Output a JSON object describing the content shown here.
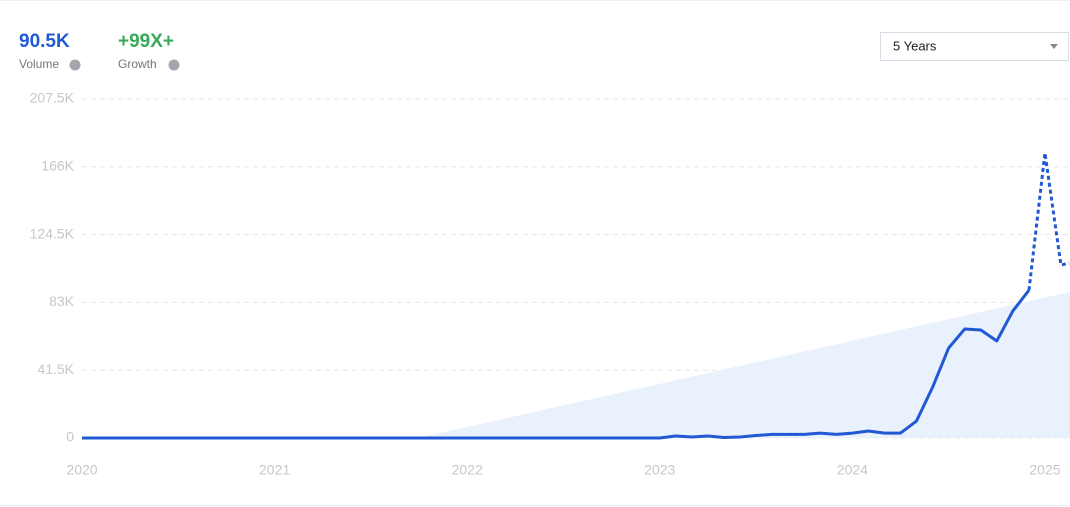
{
  "chart_data": {
    "type": "line",
    "stats": [
      {
        "value": "90.5K",
        "label": "Volume",
        "color": "#1f5ad6"
      },
      {
        "value": "+99X+",
        "label": "Growth",
        "color": "#38a95a"
      }
    ],
    "range_selector": "5 Years",
    "xlim": [
      2020,
      2025.13
    ],
    "xticks": [
      2020,
      2021,
      2022,
      2023,
      2024,
      2025
    ],
    "ylim": [
      0,
      207500
    ],
    "yticks": [
      0,
      {
        "value": 41500,
        "label": "41.5K"
      },
      {
        "value": 83000,
        "label": "83K"
      },
      {
        "value": 124500,
        "label": "124.5K"
      },
      {
        "value": 166000,
        "label": "166K"
      },
      {
        "value": 207500,
        "label": "207.5K"
      }
    ],
    "grid": true,
    "series": [
      {
        "style": "area",
        "color": "#e9f1fc",
        "x": [
          2021.745,
          2025.13
        ],
        "values": [
          0,
          89400
        ]
      },
      {
        "style": "solid",
        "color": "#2159d4",
        "x": [
          2020,
          2021,
          2022,
          2023,
          2023.083,
          2023.167,
          2023.25,
          2023.333,
          2023.417,
          2023.5,
          2023.583,
          2023.667,
          2023.75,
          2023.833,
          2023.917,
          2024,
          2024.083,
          2024.167,
          2024.25,
          2024.333,
          2024.417,
          2024.5,
          2024.583,
          2024.667,
          2024.75,
          2024.833,
          2024.917
        ],
        "values": [
          0,
          0,
          0,
          0,
          1200,
          600,
          1200,
          300,
          600,
          1500,
          2200,
          2200,
          2200,
          3000,
          2200,
          3000,
          4300,
          3000,
          3000,
          10400,
          31200,
          55100,
          66700,
          66100,
          59400,
          77700,
          90500
        ]
      },
      {
        "style": "dashed",
        "color": "#2159d4",
        "x": [
          2024.917,
          2025,
          2025.083,
          2025.125
        ],
        "values": [
          90500,
          174400,
          105900,
          107000
        ]
      }
    ]
  }
}
